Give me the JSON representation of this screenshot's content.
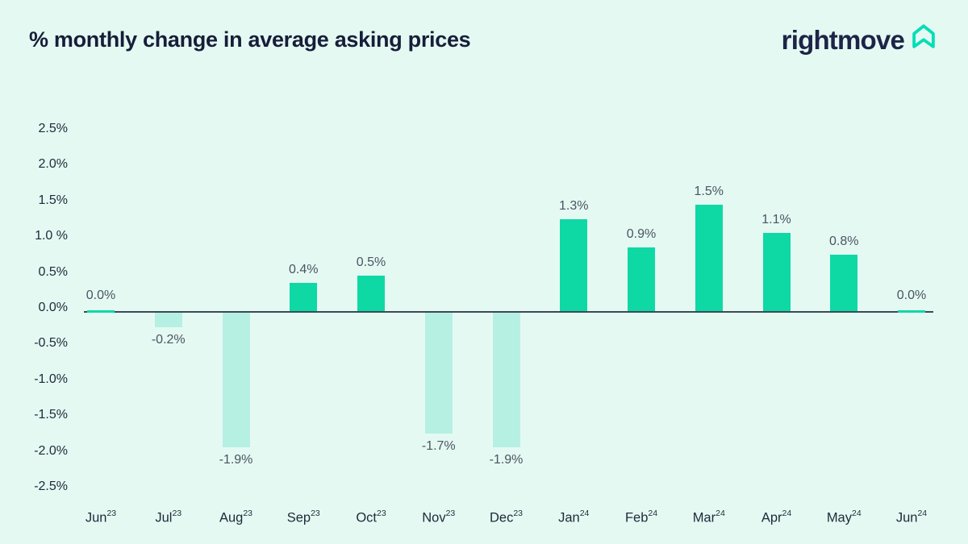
{
  "header": {
    "title": "% monthly change in average asking prices",
    "logo_text": "rightmove",
    "logo_icon": "rightmove-house-icon"
  },
  "colors": {
    "background": "#e5f9f3",
    "positive_bar": "#0ed9a5",
    "negative_bar": "#b6f0e3",
    "axis_line": "#3a4a55",
    "title_text": "#161e38",
    "logo_text": "#1e2447",
    "logo_green": "#00deb6",
    "tick_text": "#1c2a38",
    "data_label_text": "#4a5560"
  },
  "chart_data": {
    "type": "bar",
    "title": "% monthly change in average asking prices",
    "categories": [
      {
        "month": "Jun",
        "year": "23"
      },
      {
        "month": "Jul",
        "year": "23"
      },
      {
        "month": "Aug",
        "year": "23"
      },
      {
        "month": "Sep",
        "year": "23"
      },
      {
        "month": "Oct",
        "year": "23"
      },
      {
        "month": "Nov",
        "year": "23"
      },
      {
        "month": "Dec",
        "year": "23"
      },
      {
        "month": "Jan",
        "year": "24"
      },
      {
        "month": "Feb",
        "year": "24"
      },
      {
        "month": "Mar",
        "year": "24"
      },
      {
        "month": "Apr",
        "year": "24"
      },
      {
        "month": "May",
        "year": "24"
      },
      {
        "month": "Jun",
        "year": "24"
      }
    ],
    "values": [
      0.0,
      -0.2,
      -1.9,
      0.4,
      0.5,
      -1.7,
      -1.9,
      1.3,
      0.9,
      1.5,
      1.1,
      0.8,
      0.0
    ],
    "data_labels": [
      "0.0%",
      "-0.2%",
      "-1.9%",
      "0.4%",
      "0.5%",
      "-1.7%",
      "-1.9%",
      "1.3%",
      "0.9%",
      "1.5%",
      "1.1%",
      "0.8%",
      "0.0%"
    ],
    "y_ticks": [
      {
        "label": "2.5%",
        "value": 2.5
      },
      {
        "label": "2.0%",
        "value": 2.0
      },
      {
        "label": "1.5%",
        "value": 1.5
      },
      {
        "label": "1.0 %",
        "value": 1.0
      },
      {
        "label": "0.5%",
        "value": 0.5
      },
      {
        "label": "0.0%",
        "value": 0.0
      },
      {
        "label": "-0.5%",
        "value": -0.5
      },
      {
        "label": "-1.0%",
        "value": -1.0
      },
      {
        "label": "-1.5%",
        "value": -1.5
      },
      {
        "label": "-2.0%",
        "value": -2.0
      },
      {
        "label": "-2.5%",
        "value": -2.5
      }
    ],
    "ylim": [
      -2.5,
      2.5
    ],
    "xlabel": "",
    "ylabel": "",
    "grid": false,
    "legend": false
  }
}
